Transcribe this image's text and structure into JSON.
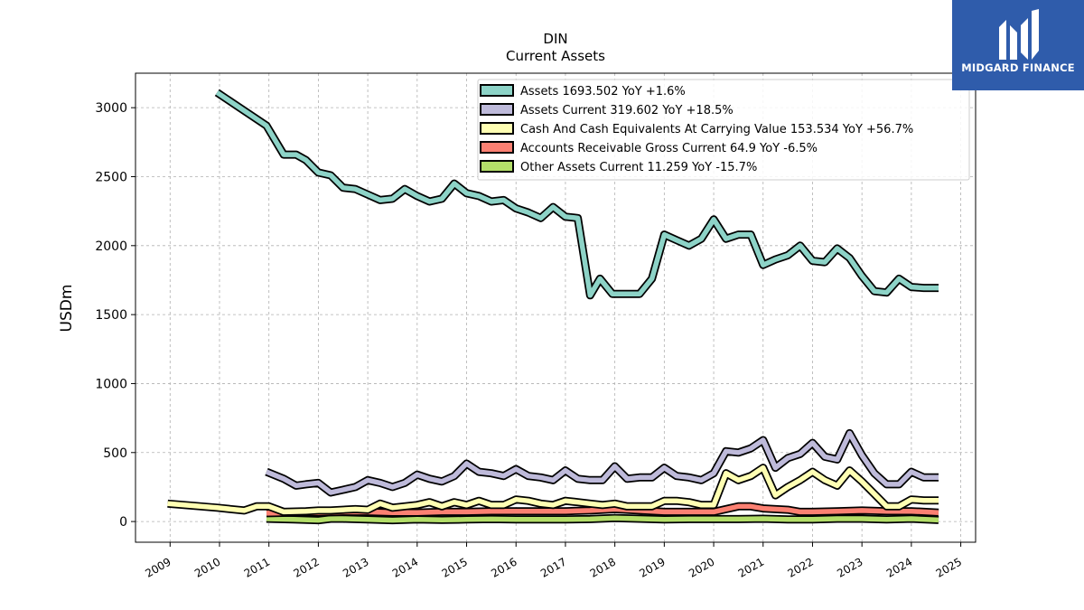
{
  "brand": {
    "name": "MIDGARD FINANCE",
    "color": "#2f5cab"
  },
  "chart_data": {
    "type": "line",
    "title": "DIN",
    "subtitle": "Current  Assets",
    "xlabel": "",
    "ylabel": "USDm",
    "xlim": [
      2008.3,
      2025.3
    ],
    "ylim": [
      -150,
      3250
    ],
    "x_ticks": [
      "2009",
      "2010",
      "2011",
      "2012",
      "2013",
      "2014",
      "2015",
      "2016",
      "2017",
      "2018",
      "2019",
      "2020",
      "2021",
      "2022",
      "2023",
      "2024",
      "2025"
    ],
    "y_ticks": [
      0,
      500,
      1000,
      1500,
      2000,
      2500,
      3000
    ],
    "y_tick_labels": [
      "0",
      "500",
      "1000",
      "1500",
      "2000",
      "2500",
      "3000"
    ],
    "grid": true,
    "legend_position": "top-right",
    "series": [
      {
        "name": "Assets",
        "legend": "Assets  1693.502 YoY +1.6%",
        "color": "#8dd3c7",
        "x": [
          2009.95,
          2010.95,
          2011.3,
          2011.55,
          2011.75,
          2012.0,
          2012.25,
          2012.5,
          2012.75,
          2013.0,
          2013.25,
          2013.5,
          2013.75,
          2014.0,
          2014.25,
          2014.5,
          2014.75,
          2015.0,
          2015.25,
          2015.5,
          2015.75,
          2016.0,
          2016.25,
          2016.5,
          2016.75,
          2017.0,
          2017.25,
          2017.5,
          2017.7,
          2017.95,
          2018.2,
          2018.5,
          2018.75,
          2019.0,
          2019.25,
          2019.5,
          2019.75,
          2020.0,
          2020.25,
          2020.5,
          2020.75,
          2021.0,
          2021.25,
          2021.5,
          2021.75,
          2022.0,
          2022.25,
          2022.5,
          2022.75,
          2023.0,
          2023.25,
          2023.5,
          2023.75,
          2024.0,
          2024.25,
          2024.55
        ],
        "values": [
          3110,
          2870,
          2660,
          2660,
          2620,
          2530,
          2510,
          2420,
          2410,
          2370,
          2330,
          2340,
          2410,
          2360,
          2320,
          2340,
          2450,
          2380,
          2360,
          2320,
          2330,
          2270,
          2240,
          2200,
          2280,
          2210,
          2200,
          1640,
          1760,
          1650,
          1650,
          1650,
          1760,
          2080,
          2040,
          2000,
          2050,
          2190,
          2050,
          2080,
          2080,
          1860,
          1900,
          1930,
          2000,
          1890,
          1880,
          1980,
          1910,
          1780,
          1670,
          1660,
          1760,
          1700,
          1693.5,
          1693.5
        ]
      },
      {
        "name": "Assets Current",
        "legend": "Assets Current  319.602 YoY +18.5%",
        "color": "#bebada",
        "x": [
          2010.95,
          2011.3,
          2011.55,
          2011.75,
          2012.0,
          2012.25,
          2012.5,
          2012.75,
          2013.0,
          2013.25,
          2013.5,
          2013.75,
          2014.0,
          2014.25,
          2014.5,
          2014.75,
          2015.0,
          2015.25,
          2015.5,
          2015.75,
          2016.0,
          2016.25,
          2016.5,
          2016.75,
          2017.0,
          2017.25,
          2017.5,
          2017.75,
          2018.0,
          2018.25,
          2018.5,
          2018.75,
          2019.0,
          2019.25,
          2019.5,
          2019.75,
          2020.0,
          2020.25,
          2020.5,
          2020.75,
          2021.0,
          2021.25,
          2021.5,
          2021.75,
          2022.0,
          2022.25,
          2022.5,
          2022.75,
          2023.0,
          2023.25,
          2023.5,
          2023.75,
          2024.0,
          2024.25,
          2024.55
        ],
        "values": [
          360,
          310,
          260,
          270,
          280,
          210,
          230,
          250,
          300,
          280,
          250,
          280,
          340,
          310,
          290,
          330,
          420,
          360,
          350,
          330,
          380,
          330,
          320,
          300,
          370,
          310,
          300,
          300,
          400,
          310,
          320,
          320,
          390,
          330,
          320,
          300,
          350,
          510,
          500,
          530,
          590,
          390,
          460,
          490,
          570,
          470,
          450,
          640,
          480,
          350,
          270,
          270,
          360,
          320,
          319.6
        ]
      },
      {
        "name": "Cash And Cash Equivalents At Carrying Value",
        "legend": "Cash And Cash Equivalents At Carrying Value  153.534 YoY +56.7%",
        "color": "#ffffb3",
        "x": [
          2008.95,
          2009.95,
          2010.5,
          2010.75,
          2011.0,
          2011.3,
          2011.75,
          2012.0,
          2012.25,
          2012.5,
          2012.75,
          2013.0,
          2013.25,
          2013.5,
          2013.75,
          2014.0,
          2014.25,
          2014.5,
          2014.75,
          2015.0,
          2015.25,
          2015.5,
          2015.75,
          2016.0,
          2016.25,
          2016.5,
          2016.75,
          2017.0,
          2017.25,
          2017.5,
          2017.75,
          2018.0,
          2018.25,
          2018.5,
          2018.75,
          2019.0,
          2019.25,
          2019.5,
          2019.75,
          2020.0,
          2020.25,
          2020.5,
          2020.75,
          2021.0,
          2021.25,
          2021.5,
          2021.75,
          2022.0,
          2022.25,
          2022.5,
          2022.75,
          2023.0,
          2023.25,
          2023.5,
          2023.75,
          2024.0,
          2024.25,
          2024.55
        ],
        "values": [
          130,
          100,
          80,
          110,
          110,
          70,
          75,
          80,
          80,
          85,
          90,
          85,
          130,
          100,
          110,
          120,
          140,
          110,
          140,
          120,
          150,
          120,
          120,
          160,
          150,
          130,
          120,
          150,
          140,
          130,
          120,
          130,
          110,
          110,
          110,
          150,
          150,
          140,
          120,
          120,
          350,
          300,
          330,
          390,
          190,
          250,
          300,
          360,
          300,
          260,
          370,
          290,
          200,
          110,
          110,
          160,
          153,
          153.5
        ]
      },
      {
        "name": "Accounts Receivable Gross Current",
        "legend": "Accounts Receivable Gross Current  64.9 YoY -6.5%",
        "color": "#fb8072",
        "x": [
          2010.95,
          2011.5,
          2012.0,
          2012.5,
          2013.0,
          2013.5,
          2014.0,
          2014.5,
          2015.0,
          2015.5,
          2016.0,
          2016.5,
          2017.0,
          2017.5,
          2018.0,
          2018.5,
          2019.0,
          2019.5,
          2020.0,
          2020.5,
          2020.75,
          2021.0,
          2021.25,
          2021.5,
          2021.75,
          2022.0,
          2022.5,
          2023.0,
          2023.5,
          2024.0,
          2024.55
        ],
        "values": [
          60,
          65,
          65,
          70,
          70,
          65,
          65,
          70,
          70,
          75,
          75,
          75,
          75,
          80,
          90,
          80,
          70,
          70,
          70,
          110,
          110,
          95,
          90,
          85,
          70,
          70,
          75,
          80,
          75,
          75,
          64.9
        ]
      },
      {
        "name": "Other Assets Current",
        "legend": "Other Assets Current  11.259 YoY -15.7%",
        "color": "#b3de69",
        "x": [
          2010.95,
          2011.5,
          2012.0,
          2012.25,
          2012.5,
          2013.0,
          2013.5,
          2014.0,
          2014.5,
          2015.0,
          2015.5,
          2016.0,
          2016.5,
          2017.0,
          2017.5,
          2018.0,
          2018.5,
          2019.0,
          2019.5,
          2020.0,
          2020.5,
          2021.0,
          2021.5,
          2022.0,
          2022.5,
          2023.0,
          2023.5,
          2024.0,
          2024.55
        ],
        "values": [
          20,
          15,
          10,
          20,
          20,
          15,
          10,
          15,
          12,
          15,
          18,
          15,
          15,
          15,
          18,
          25,
          20,
          15,
          18,
          18,
          18,
          20,
          15,
          15,
          20,
          20,
          15,
          20,
          11.3
        ]
      }
    ]
  }
}
